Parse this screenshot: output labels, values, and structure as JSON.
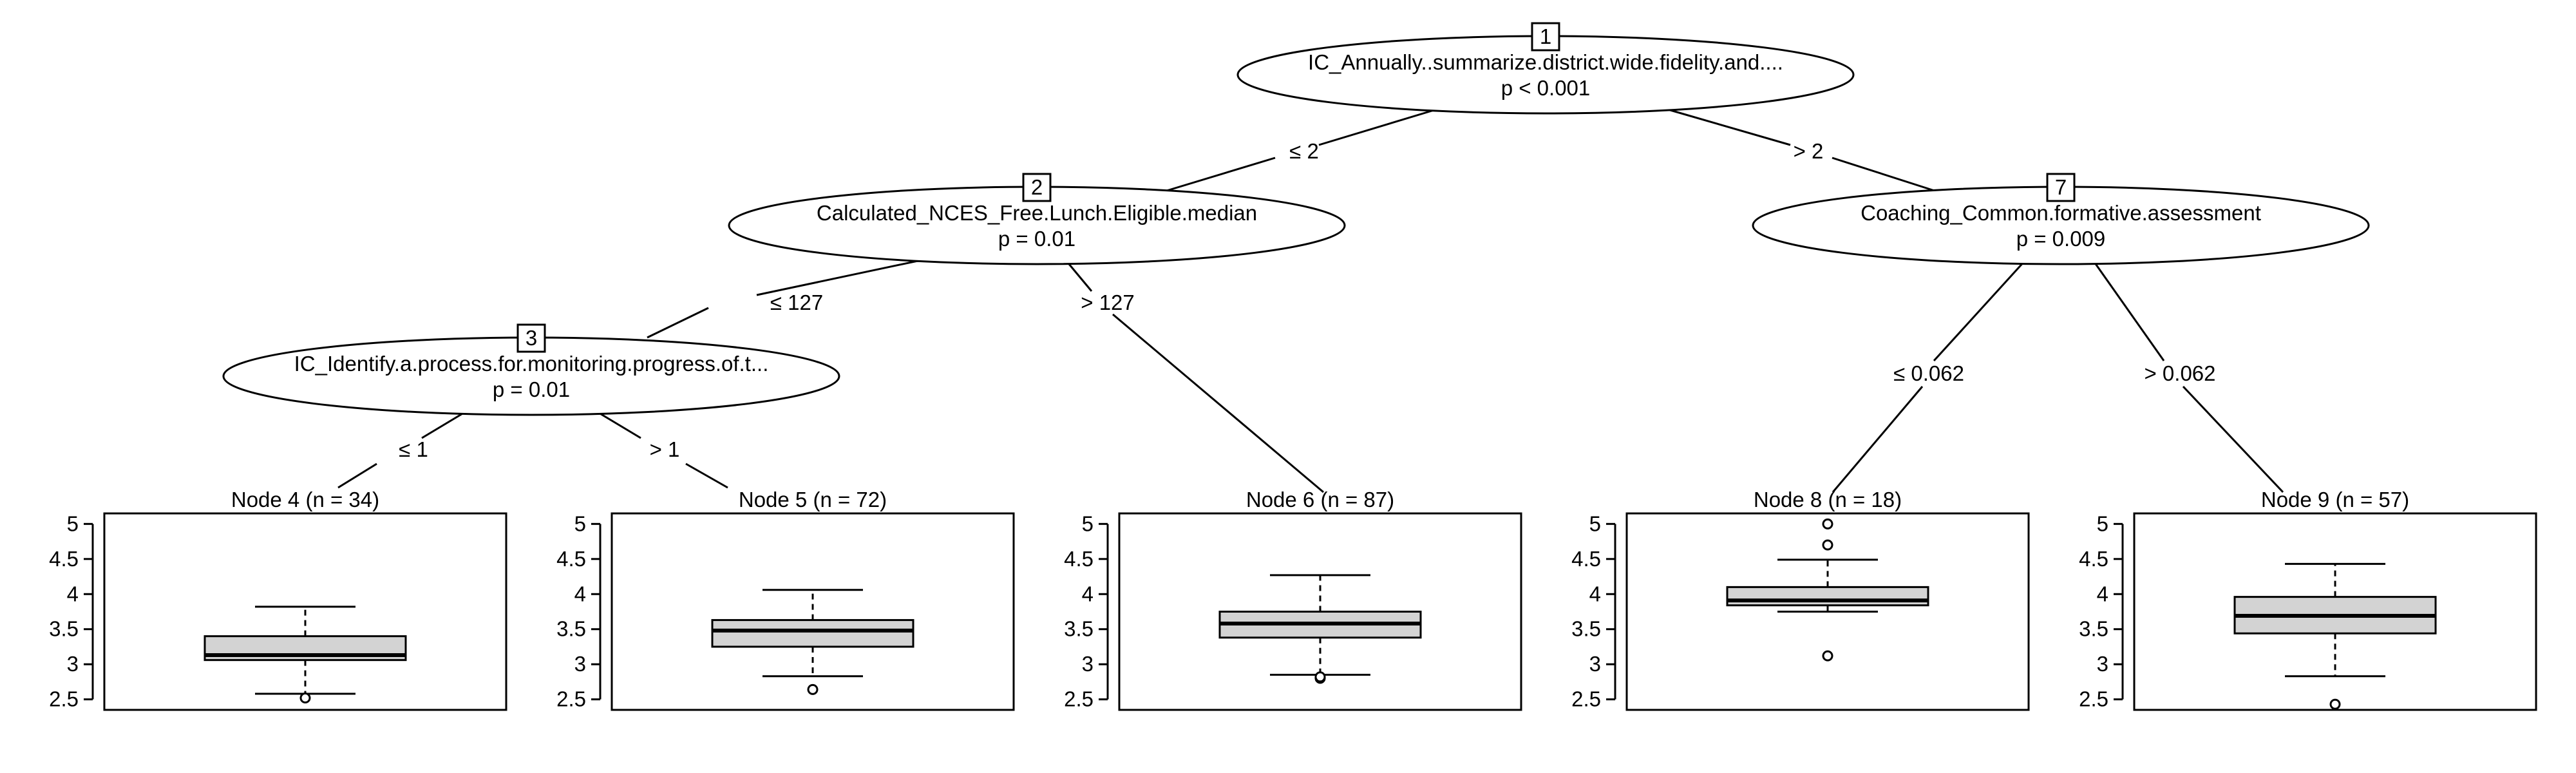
{
  "inner_nodes": [
    {
      "id": "1",
      "label": "IC_Annually..summarize.district.wide.fidelity.and....",
      "p": "p < 0.001"
    },
    {
      "id": "2",
      "label": "Calculated_NCES_Free.Lunch.Eligible.median",
      "p": "p = 0.01"
    },
    {
      "id": "3",
      "label": "IC_Identify.a.process.for.monitoring.progress.of.t...",
      "p": "p = 0.01"
    },
    {
      "id": "7",
      "label": "Coaching_Common.formative.assessment",
      "p": "p = 0.009"
    }
  ],
  "edges": [
    {
      "label": "≤ 2"
    },
    {
      "label": "> 2"
    },
    {
      "label": "≤ 127"
    },
    {
      "label": "> 127"
    },
    {
      "label": "≤ 1"
    },
    {
      "label": "> 1"
    },
    {
      "label": "≤ 0.062"
    },
    {
      "label": "> 0.062"
    }
  ],
  "chart_data": {
    "type": "boxplot",
    "yticks": [
      "5",
      "4.5",
      "4",
      "3.5",
      "3",
      "2.5"
    ],
    "ylim": [
      2.35,
      5.15
    ],
    "series": [
      {
        "title": "Node 4 (n = 34)",
        "whisker_low": 2.58,
        "q1": 3.06,
        "median": 3.13,
        "q3": 3.4,
        "whisker_high": 3.82,
        "outliers": [
          2.52
        ]
      },
      {
        "title": "Node 5 (n = 72)",
        "whisker_low": 2.83,
        "q1": 3.25,
        "median": 3.48,
        "q3": 3.63,
        "whisker_high": 4.06,
        "outliers": [
          2.64
        ]
      },
      {
        "title": "Node 6 (n = 87)",
        "whisker_low": 2.85,
        "q1": 3.38,
        "median": 3.58,
        "q3": 3.75,
        "whisker_high": 4.27,
        "outliers": [
          2.8,
          2.82
        ]
      },
      {
        "title": "Node 8 (n = 18)",
        "whisker_low": 3.75,
        "q1": 3.84,
        "median": 3.91,
        "q3": 4.1,
        "whisker_high": 4.49,
        "outliers": [
          3.12,
          4.7,
          5.0
        ]
      },
      {
        "title": "Node 9 (n = 57)",
        "whisker_low": 2.83,
        "q1": 3.44,
        "median": 3.69,
        "q3": 3.96,
        "whisker_high": 4.43,
        "outliers": [
          2.43
        ]
      }
    ]
  }
}
